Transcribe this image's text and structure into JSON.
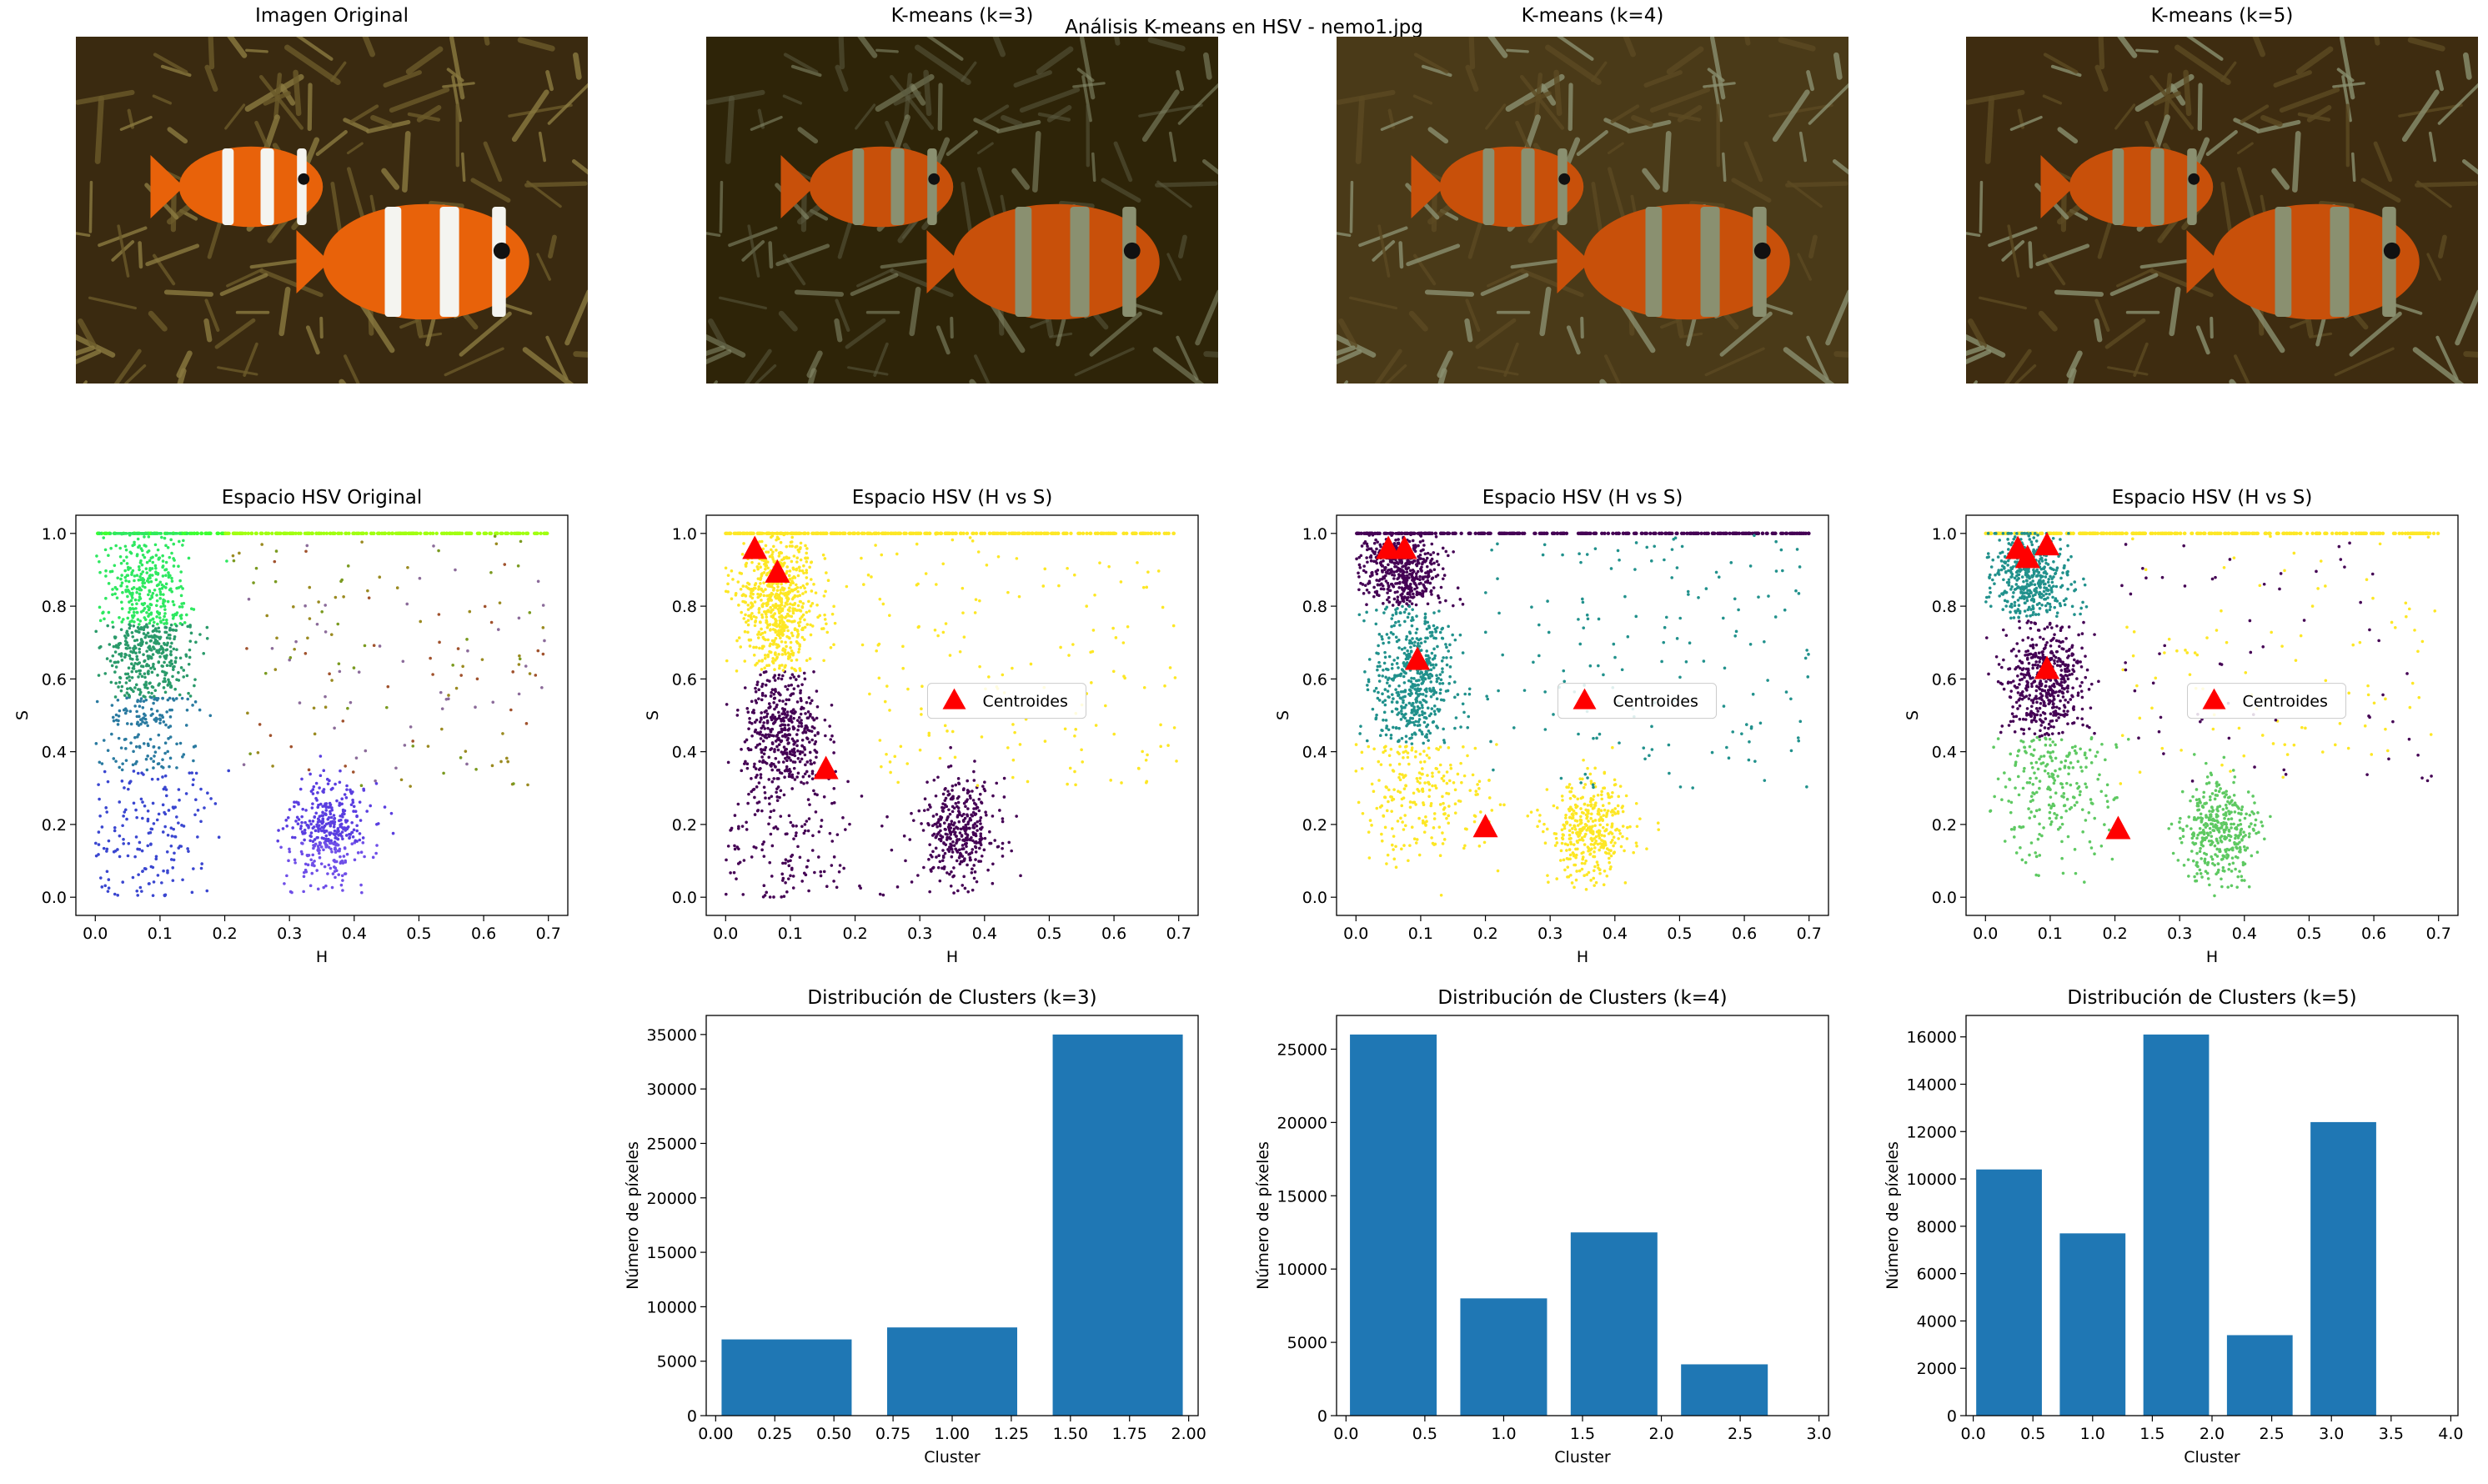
{
  "suptitle": "Análisis K-means en HSV - nemo1.jpg",
  "images": [
    {
      "title": "Imagen Original",
      "style": "original"
    },
    {
      "title": "K-means (k=3)",
      "style": "k3"
    },
    {
      "title": "K-means (k=4)",
      "style": "k4"
    },
    {
      "title": "K-means (k=5)",
      "style": "k5"
    }
  ],
  "palette": {
    "bg_dark": "#2e2408",
    "fish_orange": "#c8500a",
    "stripe_sage": "#8a9070",
    "viridis_purple": "#440154",
    "viridis_teal": "#21918c",
    "viridis_green": "#5ec962",
    "viridis_yellow": "#fde725",
    "centroid_red": "#ff0000",
    "bar_blue": "#1f77b4"
  },
  "chart_data": [
    {
      "type": "scatter",
      "title": "Espacio HSV Original",
      "xlabel": "H",
      "ylabel": "S",
      "xlim": [
        -0.03,
        0.73
      ],
      "ylim": [
        -0.05,
        1.05
      ],
      "xticks": [
        0.0,
        0.1,
        0.2,
        0.3,
        0.4,
        0.5,
        0.6,
        0.7
      ],
      "yticks": [
        0.0,
        0.2,
        0.4,
        0.6,
        0.8,
        1.0
      ],
      "coloring": "rgb",
      "clusters": [
        {
          "h": 0.08,
          "s": 0.7,
          "sh": 0.035,
          "ss": 0.18,
          "n": 900
        },
        {
          "h": 0.36,
          "s": 0.18,
          "sh": 0.03,
          "ss": 0.07,
          "n": 380
        },
        {
          "h": 0.08,
          "s": 0.15,
          "sh": 0.05,
          "ss": 0.1,
          "n": 150
        }
      ],
      "legend": null,
      "centroids": []
    },
    {
      "type": "scatter",
      "title": "Espacio HSV (H vs S)",
      "xlabel": "H",
      "ylabel": "S",
      "xlim": [
        -0.03,
        0.73
      ],
      "ylim": [
        -0.05,
        1.05
      ],
      "xticks": [
        0.0,
        0.1,
        0.2,
        0.3,
        0.4,
        0.5,
        0.6,
        0.7
      ],
      "yticks": [
        0.0,
        0.2,
        0.4,
        0.6,
        0.8,
        1.0
      ],
      "coloring": "k3",
      "clusters": [
        {
          "h": 0.08,
          "s": 0.82,
          "sh": 0.03,
          "ss": 0.1,
          "n": 700,
          "c": 2
        },
        {
          "h": 0.09,
          "s": 0.45,
          "sh": 0.03,
          "ss": 0.09,
          "n": 450,
          "c": 0
        },
        {
          "h": 0.36,
          "s": 0.18,
          "sh": 0.03,
          "ss": 0.07,
          "n": 380,
          "c": 0
        },
        {
          "h": 0.1,
          "s": 0.15,
          "sh": 0.06,
          "ss": 0.1,
          "n": 150,
          "c": 0
        }
      ],
      "legend": "Centroides",
      "centroids": [
        [
          0.045,
          0.955
        ],
        [
          0.08,
          0.89
        ],
        [
          0.155,
          0.35
        ]
      ]
    },
    {
      "type": "scatter",
      "title": "Espacio HSV (H vs S)",
      "xlabel": "H",
      "ylabel": "S",
      "xlim": [
        -0.03,
        0.73
      ],
      "ylim": [
        -0.05,
        1.05
      ],
      "xticks": [
        0.0,
        0.1,
        0.2,
        0.3,
        0.4,
        0.5,
        0.6,
        0.7
      ],
      "yticks": [
        0.0,
        0.2,
        0.4,
        0.6,
        0.8,
        1.0
      ],
      "coloring": "k4",
      "clusters": [
        {
          "h": 0.07,
          "s": 0.9,
          "sh": 0.03,
          "ss": 0.06,
          "n": 500,
          "c": 0
        },
        {
          "h": 0.09,
          "s": 0.6,
          "sh": 0.03,
          "ss": 0.1,
          "n": 500,
          "c": 2
        },
        {
          "h": 0.36,
          "s": 0.18,
          "sh": 0.03,
          "ss": 0.07,
          "n": 380,
          "c": 3
        },
        {
          "h": 0.1,
          "s": 0.28,
          "sh": 0.05,
          "ss": 0.1,
          "n": 250,
          "c": 3
        }
      ],
      "legend": "Centroides",
      "centroids": [
        [
          0.05,
          0.955
        ],
        [
          0.075,
          0.955
        ],
        [
          0.095,
          0.65
        ],
        [
          0.2,
          0.19
        ]
      ]
    },
    {
      "type": "scatter",
      "title": "Espacio HSV (H vs S)",
      "xlabel": "H",
      "ylabel": "S",
      "xlim": [
        -0.03,
        0.73
      ],
      "ylim": [
        -0.05,
        1.05
      ],
      "xticks": [
        0.0,
        0.1,
        0.2,
        0.3,
        0.4,
        0.5,
        0.6,
        0.7
      ],
      "yticks": [
        0.0,
        0.2,
        0.4,
        0.6,
        0.8,
        1.0
      ],
      "coloring": "k5",
      "clusters": [
        {
          "h": 0.07,
          "s": 0.88,
          "sh": 0.03,
          "ss": 0.06,
          "n": 450,
          "c": 1
        },
        {
          "h": 0.09,
          "s": 0.6,
          "sh": 0.03,
          "ss": 0.08,
          "n": 500,
          "c": 0
        },
        {
          "h": 0.36,
          "s": 0.18,
          "sh": 0.03,
          "ss": 0.07,
          "n": 380,
          "c": 3
        },
        {
          "h": 0.1,
          "s": 0.3,
          "sh": 0.05,
          "ss": 0.1,
          "n": 250,
          "c": 3
        }
      ],
      "legend": "Centroides",
      "centroids": [
        [
          0.05,
          0.955
        ],
        [
          0.065,
          0.93
        ],
        [
          0.095,
          0.965
        ],
        [
          0.095,
          0.625
        ],
        [
          0.205,
          0.185
        ]
      ]
    },
    {
      "type": "bar",
      "title": "Distribución de Clusters (k=3)",
      "xlabel": "Cluster",
      "ylabel": "Número de píxeles",
      "x": [
        0.3,
        1.0,
        1.7
      ],
      "values": [
        7000,
        8100,
        35000
      ],
      "width": 0.55,
      "xlim": [
        -0.04,
        2.04
      ],
      "ylim": [
        0,
        36750
      ],
      "xticks": [
        0.0,
        0.25,
        0.5,
        0.75,
        1.0,
        1.25,
        1.5,
        1.75,
        2.0
      ],
      "xticklabels": [
        "0.00",
        "0.25",
        "0.50",
        "0.75",
        "1.00",
        "1.25",
        "1.50",
        "1.75",
        "2.00"
      ],
      "yticks": [
        0,
        5000,
        10000,
        15000,
        20000,
        25000,
        30000,
        35000
      ]
    },
    {
      "type": "bar",
      "title": "Distribución de Clusters (k=4)",
      "xlabel": "Cluster",
      "ylabel": "Número de píxeles",
      "x": [
        0.3,
        1.0,
        1.7,
        2.4
      ],
      "values": [
        26000,
        8000,
        12500,
        3500
      ],
      "width": 0.55,
      "xlim": [
        -0.06,
        3.06
      ],
      "ylim": [
        0,
        27300
      ],
      "xticks": [
        0.0,
        0.5,
        1.0,
        1.5,
        2.0,
        2.5,
        3.0
      ],
      "xticklabels": [
        "0.0",
        "0.5",
        "1.0",
        "1.5",
        "2.0",
        "2.5",
        "3.0"
      ],
      "yticks": [
        0,
        5000,
        10000,
        15000,
        20000,
        25000
      ]
    },
    {
      "type": "bar",
      "title": "Distribución de Clusters (k=5)",
      "xlabel": "Cluster",
      "ylabel": "Número de píxeles",
      "x": [
        0.3,
        1.0,
        1.7,
        2.4,
        3.1
      ],
      "values": [
        10400,
        7700,
        16100,
        3400,
        12400
      ],
      "width": 0.55,
      "xlim": [
        -0.06,
        4.06
      ],
      "ylim": [
        0,
        16905
      ],
      "xticks": [
        0.0,
        0.5,
        1.0,
        1.5,
        2.0,
        2.5,
        3.0,
        3.5,
        4.0
      ],
      "xticklabels": [
        "0.0",
        "0.5",
        "1.0",
        "1.5",
        "2.0",
        "2.5",
        "3.0",
        "3.5",
        "4.0"
      ],
      "yticks": [
        0,
        2000,
        4000,
        6000,
        8000,
        10000,
        12000,
        14000,
        16000
      ]
    }
  ]
}
